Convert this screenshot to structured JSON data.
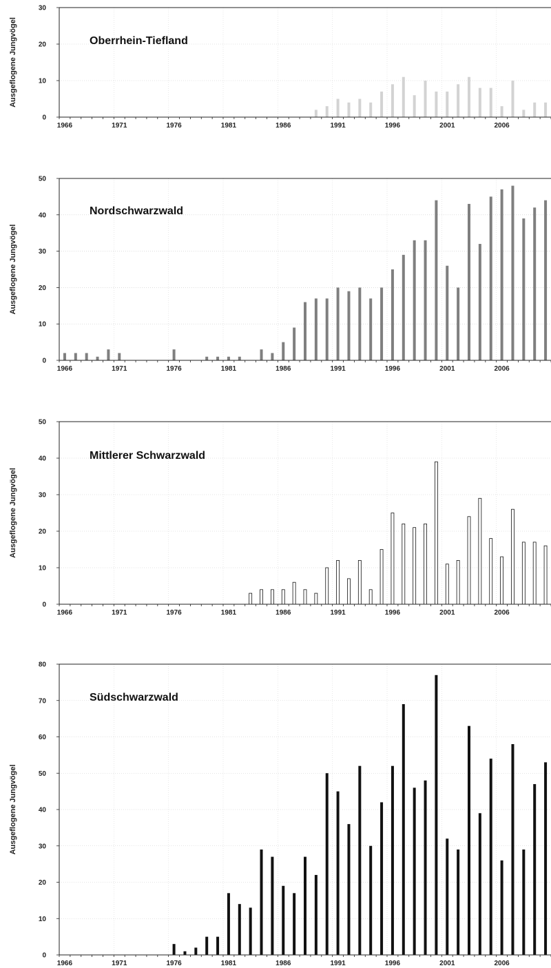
{
  "chart_data": [
    {
      "type": "bar",
      "title": "Oberrhein-Tiefland",
      "ylabel": "Ausgeflogene Jungvögel",
      "xlabel": "",
      "ylim": [
        0,
        30
      ],
      "yticks": [
        0,
        10,
        20,
        30
      ],
      "xticks": [
        "1966",
        "1971",
        "1976",
        "1981",
        "1986",
        "1991",
        "1996",
        "2001",
        "2006"
      ],
      "grid": true,
      "bar_color": "#d3d3d3",
      "bar_stroke": "none",
      "categories": [
        "1966",
        "1967",
        "1968",
        "1969",
        "1970",
        "1971",
        "1972",
        "1973",
        "1974",
        "1975",
        "1976",
        "1977",
        "1978",
        "1979",
        "1980",
        "1981",
        "1982",
        "1983",
        "1984",
        "1985",
        "1986",
        "1987",
        "1988",
        "1989",
        "1990",
        "1991",
        "1992",
        "1993",
        "1994",
        "1995",
        "1996",
        "1997",
        "1998",
        "1999",
        "2000",
        "2001",
        "2002",
        "2003",
        "2004",
        "2005",
        "2006",
        "2007",
        "2008",
        "2009",
        "2010"
      ],
      "values": [
        0,
        0,
        0,
        0,
        0,
        0,
        0,
        0,
        0,
        0,
        0,
        0,
        0,
        0,
        0,
        0,
        0,
        0,
        0,
        0,
        0,
        0,
        0,
        2,
        3,
        5,
        4,
        5,
        4,
        7,
        9,
        11,
        6,
        10,
        7,
        7,
        9,
        11,
        8,
        8,
        3,
        10,
        2,
        4,
        4
      ]
    },
    {
      "type": "bar",
      "title": "Nordschwarzwald",
      "ylabel": "Ausgeflogene Jungvögel",
      "xlabel": "",
      "ylim": [
        0,
        50
      ],
      "yticks": [
        0,
        10,
        20,
        30,
        40,
        50
      ],
      "xticks": [
        "1966",
        "1971",
        "1976",
        "1981",
        "1986",
        "1991",
        "1996",
        "2001",
        "2006"
      ],
      "grid": true,
      "bar_color": "#7f7f7f",
      "bar_stroke": "none",
      "categories": [
        "1966",
        "1967",
        "1968",
        "1969",
        "1970",
        "1971",
        "1972",
        "1973",
        "1974",
        "1975",
        "1976",
        "1977",
        "1978",
        "1979",
        "1980",
        "1981",
        "1982",
        "1983",
        "1984",
        "1985",
        "1986",
        "1987",
        "1988",
        "1989",
        "1990",
        "1991",
        "1992",
        "1993",
        "1994",
        "1995",
        "1996",
        "1997",
        "1998",
        "1999",
        "2000",
        "2001",
        "2002",
        "2003",
        "2004",
        "2005",
        "2006",
        "2007",
        "2008",
        "2009",
        "2010"
      ],
      "values": [
        2,
        2,
        2,
        1,
        3,
        2,
        0,
        0,
        0,
        0,
        3,
        0,
        0,
        1,
        1,
        1,
        1,
        0,
        3,
        2,
        5,
        9,
        16,
        17,
        17,
        20,
        19,
        20,
        17,
        20,
        25,
        29,
        33,
        33,
        44,
        26,
        20,
        43,
        32,
        45,
        47,
        48,
        39,
        42,
        44
      ]
    },
    {
      "type": "bar",
      "title": "Mittlerer Schwarzwald",
      "ylabel": "Ausgeflogene Jungvögel",
      "xlabel": "",
      "ylim": [
        0,
        50
      ],
      "yticks": [
        0,
        10,
        20,
        30,
        40,
        50
      ],
      "xticks": [
        "1966",
        "1971",
        "1976",
        "1981",
        "1986",
        "1991",
        "1996",
        "2001",
        "2006"
      ],
      "grid": true,
      "bar_color": "#ffffff",
      "bar_stroke": "#111111",
      "categories": [
        "1966",
        "1967",
        "1968",
        "1969",
        "1970",
        "1971",
        "1972",
        "1973",
        "1974",
        "1975",
        "1976",
        "1977",
        "1978",
        "1979",
        "1980",
        "1981",
        "1982",
        "1983",
        "1984",
        "1985",
        "1986",
        "1987",
        "1988",
        "1989",
        "1990",
        "1991",
        "1992",
        "1993",
        "1994",
        "1995",
        "1996",
        "1997",
        "1998",
        "1999",
        "2000",
        "2001",
        "2002",
        "2003",
        "2004",
        "2005",
        "2006",
        "2007",
        "2008",
        "2009",
        "2010"
      ],
      "values": [
        0,
        0,
        0,
        0,
        0,
        0,
        0,
        0,
        0,
        0,
        0,
        0,
        0,
        0,
        0,
        0,
        0,
        3,
        4,
        4,
        4,
        6,
        4,
        3,
        10,
        12,
        7,
        12,
        4,
        15,
        25,
        22,
        21,
        22,
        39,
        11,
        12,
        24,
        29,
        18,
        13,
        26,
        17,
        17,
        16
      ]
    },
    {
      "type": "bar",
      "title": "Südschwarzwald",
      "ylabel": "Ausgeflogene Jungvögel",
      "xlabel": "",
      "ylim": [
        0,
        80
      ],
      "yticks": [
        0,
        10,
        20,
        30,
        40,
        50,
        60,
        70,
        80
      ],
      "xticks": [
        "1966",
        "1971",
        "1976",
        "1981",
        "1986",
        "1991",
        "1996",
        "2001",
        "2006"
      ],
      "grid": true,
      "bar_color": "#111111",
      "bar_stroke": "none",
      "categories": [
        "1966",
        "1967",
        "1968",
        "1969",
        "1970",
        "1971",
        "1972",
        "1973",
        "1974",
        "1975",
        "1976",
        "1977",
        "1978",
        "1979",
        "1980",
        "1981",
        "1982",
        "1983",
        "1984",
        "1985",
        "1986",
        "1987",
        "1988",
        "1989",
        "1990",
        "1991",
        "1992",
        "1993",
        "1994",
        "1995",
        "1996",
        "1997",
        "1998",
        "1999",
        "2000",
        "2001",
        "2002",
        "2003",
        "2004",
        "2005",
        "2006",
        "2007",
        "2008",
        "2009",
        "2010"
      ],
      "values": [
        0,
        0,
        0,
        0,
        0,
        0,
        0,
        0,
        0,
        0,
        3,
        1,
        2,
        5,
        5,
        17,
        14,
        13,
        29,
        27,
        19,
        17,
        27,
        22,
        50,
        45,
        36,
        52,
        30,
        42,
        52,
        69,
        46,
        48,
        77,
        32,
        29,
        63,
        39,
        54,
        26,
        58,
        29,
        47,
        53
      ]
    }
  ]
}
